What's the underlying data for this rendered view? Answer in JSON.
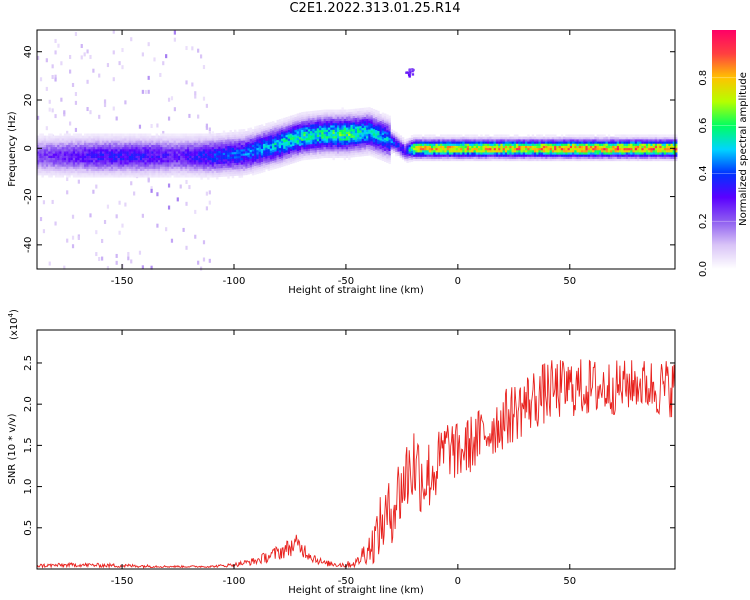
{
  "title": "C2E1.2022.313.01.25.R14",
  "colors": {
    "snr_line": "#e8211d",
    "colormap": [
      "#ffffff",
      "#d9c4f7",
      "#8e5df0",
      "#5a00ff",
      "#0033ff",
      "#00d4ff",
      "#00ff60",
      "#b5ff00",
      "#ffc300",
      "#ff4040",
      "#ff0066"
    ]
  },
  "chart_data": [
    {
      "type": "heatmap",
      "xlabel": "Height of straight line (km)",
      "ylabel": "Frequency (Hz)",
      "xlim": [
        -188,
        97
      ],
      "ylim": [
        -50,
        49
      ],
      "xticks": [
        -150,
        -100,
        -50,
        0,
        50
      ],
      "yticks": [
        -40,
        -20,
        0,
        20,
        40
      ],
      "colorbar": {
        "label": "Normalized spectral amplitude",
        "range": [
          0.0,
          1.0
        ],
        "ticks": [
          "0.0",
          "0.2",
          "0.4",
          "0.6",
          "0.8"
        ]
      },
      "ridge": {
        "x": [
          -188,
          -160,
          -140,
          -125,
          -110,
          -95,
          -80,
          -70,
          -60,
          -50,
          -40,
          -32,
          -28,
          -24,
          -20,
          -10,
          0,
          20,
          50,
          97
        ],
        "frequency_hz": [
          -3,
          -3,
          -3,
          -3,
          -3,
          -2,
          2,
          5,
          6,
          6,
          7,
          4,
          2,
          -1,
          0,
          0,
          0,
          0,
          0,
          0
        ],
        "amplitude": [
          0.25,
          0.35,
          0.35,
          0.3,
          0.4,
          0.45,
          0.55,
          0.6,
          0.6,
          0.65,
          0.55,
          0.5,
          0.4,
          0.35,
          0.8,
          0.85,
          0.85,
          0.85,
          0.9,
          0.9
        ]
      },
      "isolated_feature": {
        "x": -22,
        "frequency_hz": 32,
        "amplitude": 0.3
      },
      "grid": false
    },
    {
      "type": "line",
      "xlabel": "Height of straight line (km)",
      "ylabel": "SNR (10 * v/v)",
      "y_multiplier": "(x10",
      "y_multiplier_exp": "4",
      "xlim": [
        -188,
        97
      ],
      "ylim": [
        0,
        2.9
      ],
      "xticks": [
        -150,
        -100,
        -50,
        0,
        50
      ],
      "yticks": [
        0.5,
        1.0,
        1.5,
        2.0,
        2.5
      ],
      "series": [
        {
          "x": [
            -188,
            -170,
            -150,
            -130,
            -110,
            -100,
            -90,
            -80,
            -72,
            -65,
            -60,
            -55,
            -50,
            -45,
            -42,
            -38,
            -35,
            -30,
            -25,
            -20,
            -15,
            -10,
            -5,
            0,
            5,
            10,
            20,
            30,
            40,
            50,
            60,
            70,
            80,
            90,
            97
          ],
          "values": [
            0.04,
            0.05,
            0.04,
            0.03,
            0.03,
            0.05,
            0.1,
            0.2,
            0.3,
            0.15,
            0.07,
            0.06,
            0.05,
            0.08,
            0.2,
            0.3,
            0.5,
            0.7,
            1.0,
            1.3,
            1.1,
            1.2,
            1.5,
            1.4,
            1.5,
            1.6,
            1.8,
            2.0,
            2.15,
            2.2,
            2.2,
            2.2,
            2.25,
            2.2,
            2.2
          ],
          "noise": [
            0.02,
            0.02,
            0.02,
            0.01,
            0.01,
            0.02,
            0.04,
            0.08,
            0.1,
            0.06,
            0.03,
            0.03,
            0.03,
            0.05,
            0.12,
            0.2,
            0.3,
            0.35,
            0.4,
            0.45,
            0.4,
            0.35,
            0.3,
            0.3,
            0.3,
            0.3,
            0.3,
            0.32,
            0.32,
            0.3,
            0.3,
            0.28,
            0.25,
            0.3,
            0.3
          ]
        }
      ],
      "grid": false
    }
  ]
}
